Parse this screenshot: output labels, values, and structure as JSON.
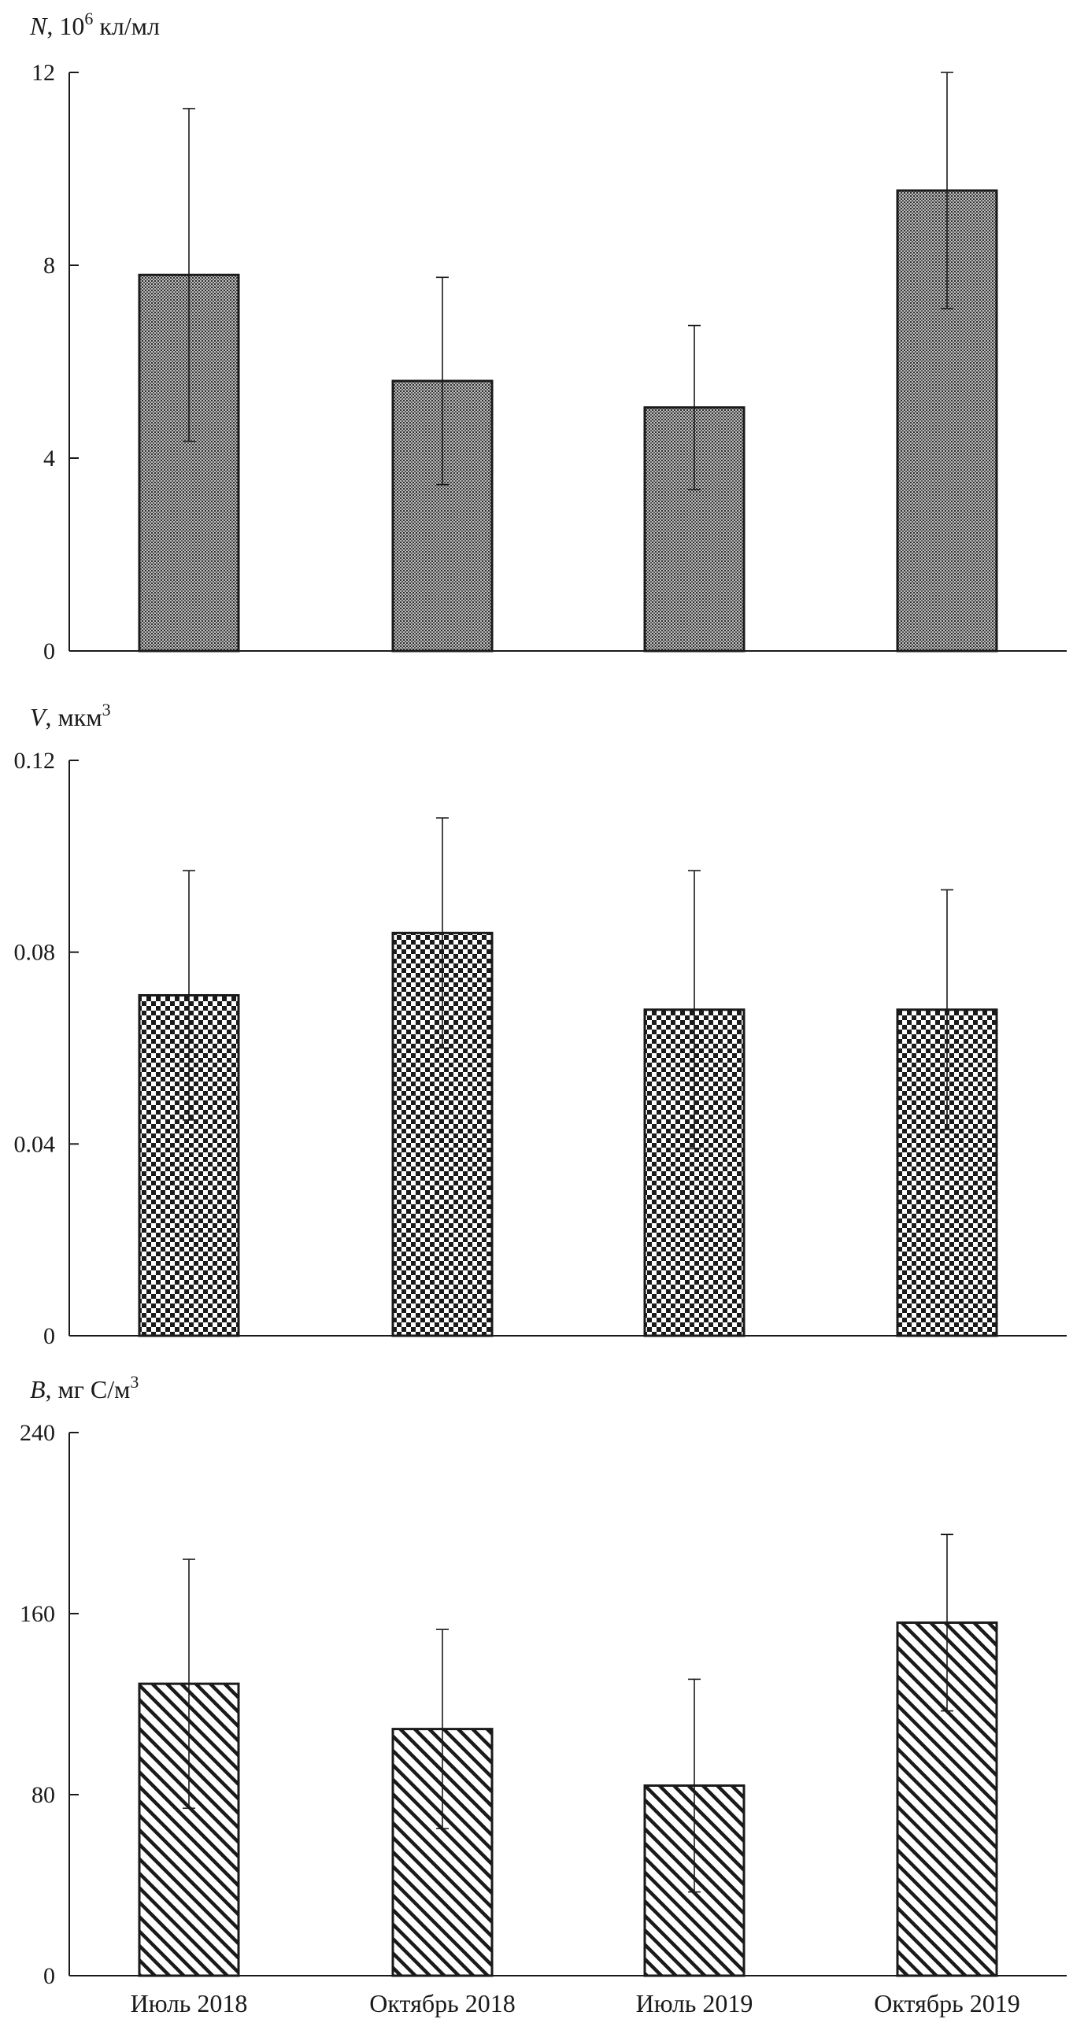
{
  "chart_data": [
    {
      "type": "bar",
      "ylabel": {
        "symbol": "N",
        "unit_base": ", 10",
        "unit_sup": "6",
        "unit_rest": " кл/мл"
      },
      "ylim": [
        0,
        12
      ],
      "yticks": [
        "0",
        "4",
        "8",
        "12"
      ],
      "categories": [
        "Июль 2018",
        "Октябрь 2018",
        "Июль 2019",
        "Октябрь 2019"
      ],
      "values": [
        7.8,
        5.6,
        5.05,
        9.55
      ],
      "errors": [
        3.45,
        2.15,
        1.7,
        2.45
      ],
      "pattern": "dense-dots"
    },
    {
      "type": "bar",
      "ylabel": {
        "symbol": "V",
        "unit_base": ", мкм",
        "unit_sup": "3",
        "unit_rest": ""
      },
      "ylim": [
        0,
        0.12
      ],
      "yticks": [
        "0",
        "0.04",
        "0.08",
        "0.12"
      ],
      "categories": [
        "Июль 2018",
        "Октябрь 2018",
        "Июль 2019",
        "Октябрь 2019"
      ],
      "values": [
        0.071,
        0.084,
        0.068,
        0.068
      ],
      "errors": [
        0.026,
        0.024,
        0.029,
        0.025
      ],
      "pattern": "checkerboard"
    },
    {
      "type": "bar",
      "ylabel": {
        "symbol": "B",
        "unit_base": ", мг С/м",
        "unit_sup": "3",
        "unit_rest": ""
      },
      "ylim": [
        0,
        240
      ],
      "yticks": [
        "0",
        "80",
        "160",
        "240"
      ],
      "categories": [
        "Июль 2018",
        "Октябрь 2018",
        "Июль 2019",
        "Октябрь 2019"
      ],
      "values": [
        129,
        109,
        84,
        156
      ],
      "errors": [
        55,
        44,
        47,
        39
      ],
      "pattern": "diagonal-hatch"
    }
  ]
}
